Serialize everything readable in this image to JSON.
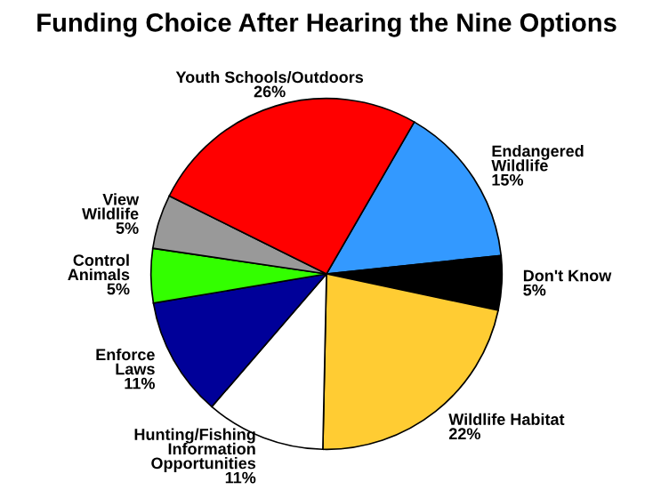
{
  "chart_data": {
    "type": "pie",
    "title": "Funding Choice After Hearing the Nine Options",
    "categories": [
      "Endangered\nWildlife",
      "Don't Know",
      "Wildlife Habitat",
      "Hunting/Fishing\nInformation\nOpportunities",
      "Enforce\nLaws",
      "Control\nAnimals",
      "View\nWildlife",
      "Youth Schools/Outdoors"
    ],
    "values": [
      15,
      5,
      22,
      11,
      11,
      5,
      5,
      26
    ],
    "value_labels": [
      "15%",
      "5%",
      "22%",
      "11%",
      "11%",
      "5%",
      "5%",
      "26%"
    ],
    "colors": [
      "#3399ff",
      "#000000",
      "#ffcc33",
      "#ffffff",
      "#000099",
      "#33ff00",
      "#999999",
      "#ff0000"
    ]
  }
}
